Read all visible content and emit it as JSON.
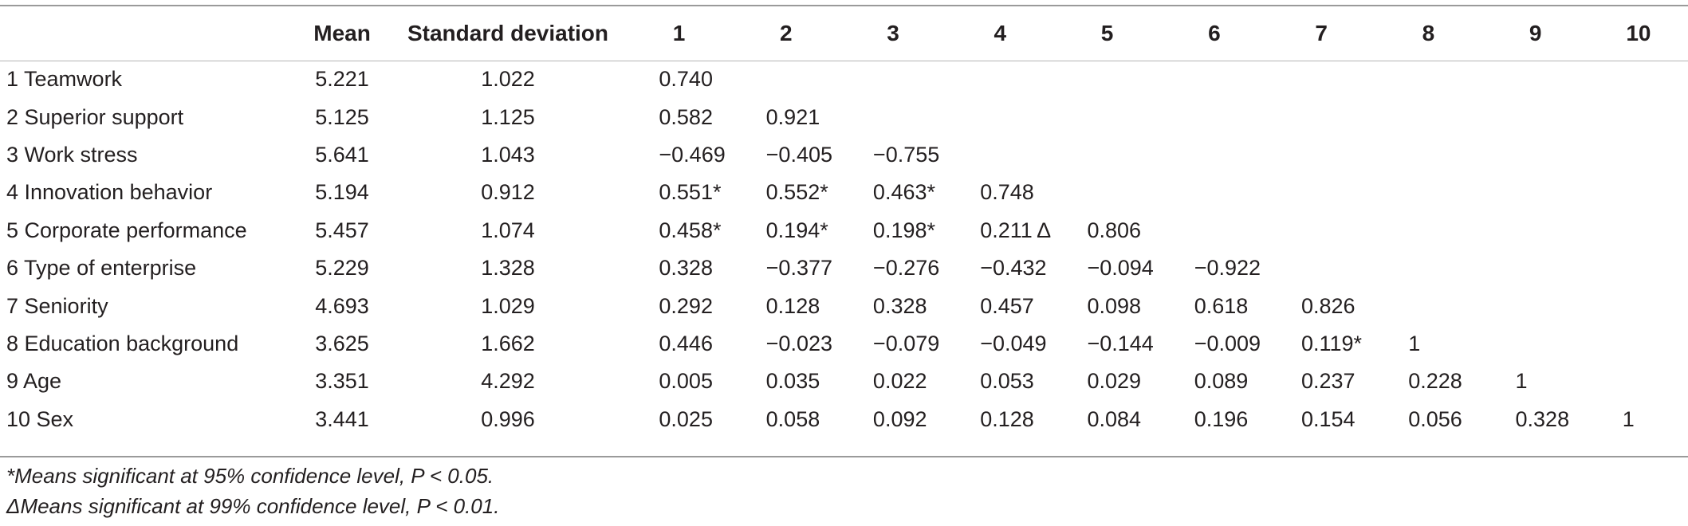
{
  "table": {
    "headers": [
      "",
      "Mean",
      "Standard deviation",
      "1",
      "2",
      "3",
      "4",
      "5",
      "6",
      "7",
      "8",
      "9",
      "10"
    ],
    "rows": [
      [
        "1 Teamwork",
        "5.221",
        "1.022",
        "0.740",
        "",
        "",
        "",
        "",
        "",
        "",
        "",
        "",
        ""
      ],
      [
        "2 Superior support",
        "5.125",
        "1.125",
        "0.582",
        "0.921",
        "",
        "",
        "",
        "",
        "",
        "",
        "",
        ""
      ],
      [
        "3 Work stress",
        "5.641",
        "1.043",
        "−0.469",
        "−0.405",
        "−0.755",
        "",
        "",
        "",
        "",
        "",
        "",
        ""
      ],
      [
        "4 Innovation behavior",
        "5.194",
        "0.912",
        "0.551*",
        "0.552*",
        "0.463*",
        "0.748",
        "",
        "",
        "",
        "",
        "",
        ""
      ],
      [
        "5 Corporate performance",
        "5.457",
        "1.074",
        "0.458*",
        "0.194*",
        "0.198*",
        "0.211 Δ",
        "0.806",
        "",
        "",
        "",
        "",
        ""
      ],
      [
        "6 Type of enterprise",
        "5.229",
        "1.328",
        "0.328",
        "−0.377",
        "−0.276",
        "−0.432",
        "−0.094",
        "−0.922",
        "",
        "",
        "",
        ""
      ],
      [
        "7 Seniority",
        "4.693",
        "1.029",
        "0.292",
        "0.128",
        "0.328",
        "0.457",
        "0.098",
        "0.618",
        "0.826",
        "",
        "",
        ""
      ],
      [
        "8 Education background",
        "3.625",
        "1.662",
        "0.446",
        "−0.023",
        "−0.079",
        "−0.049",
        "−0.144",
        "−0.009",
        "0.119*",
        "1",
        "",
        ""
      ],
      [
        "9 Age",
        "3.351",
        "4.292",
        "0.005",
        "0.035",
        "0.022",
        "0.053",
        "0.029",
        "0.089",
        "0.237",
        "0.228",
        "1",
        ""
      ],
      [
        "10 Sex",
        "3.441",
        "0.996",
        "0.025",
        "0.058",
        "0.092",
        "0.128",
        "0.084",
        "0.196",
        "0.154",
        "0.056",
        "0.328",
        "1"
      ]
    ]
  },
  "footnotes": {
    "note1": "*Means significant at 95% confidence level, P < 0.05.",
    "note2": "ΔMeans significant at 99% confidence level, P < 0.01."
  }
}
